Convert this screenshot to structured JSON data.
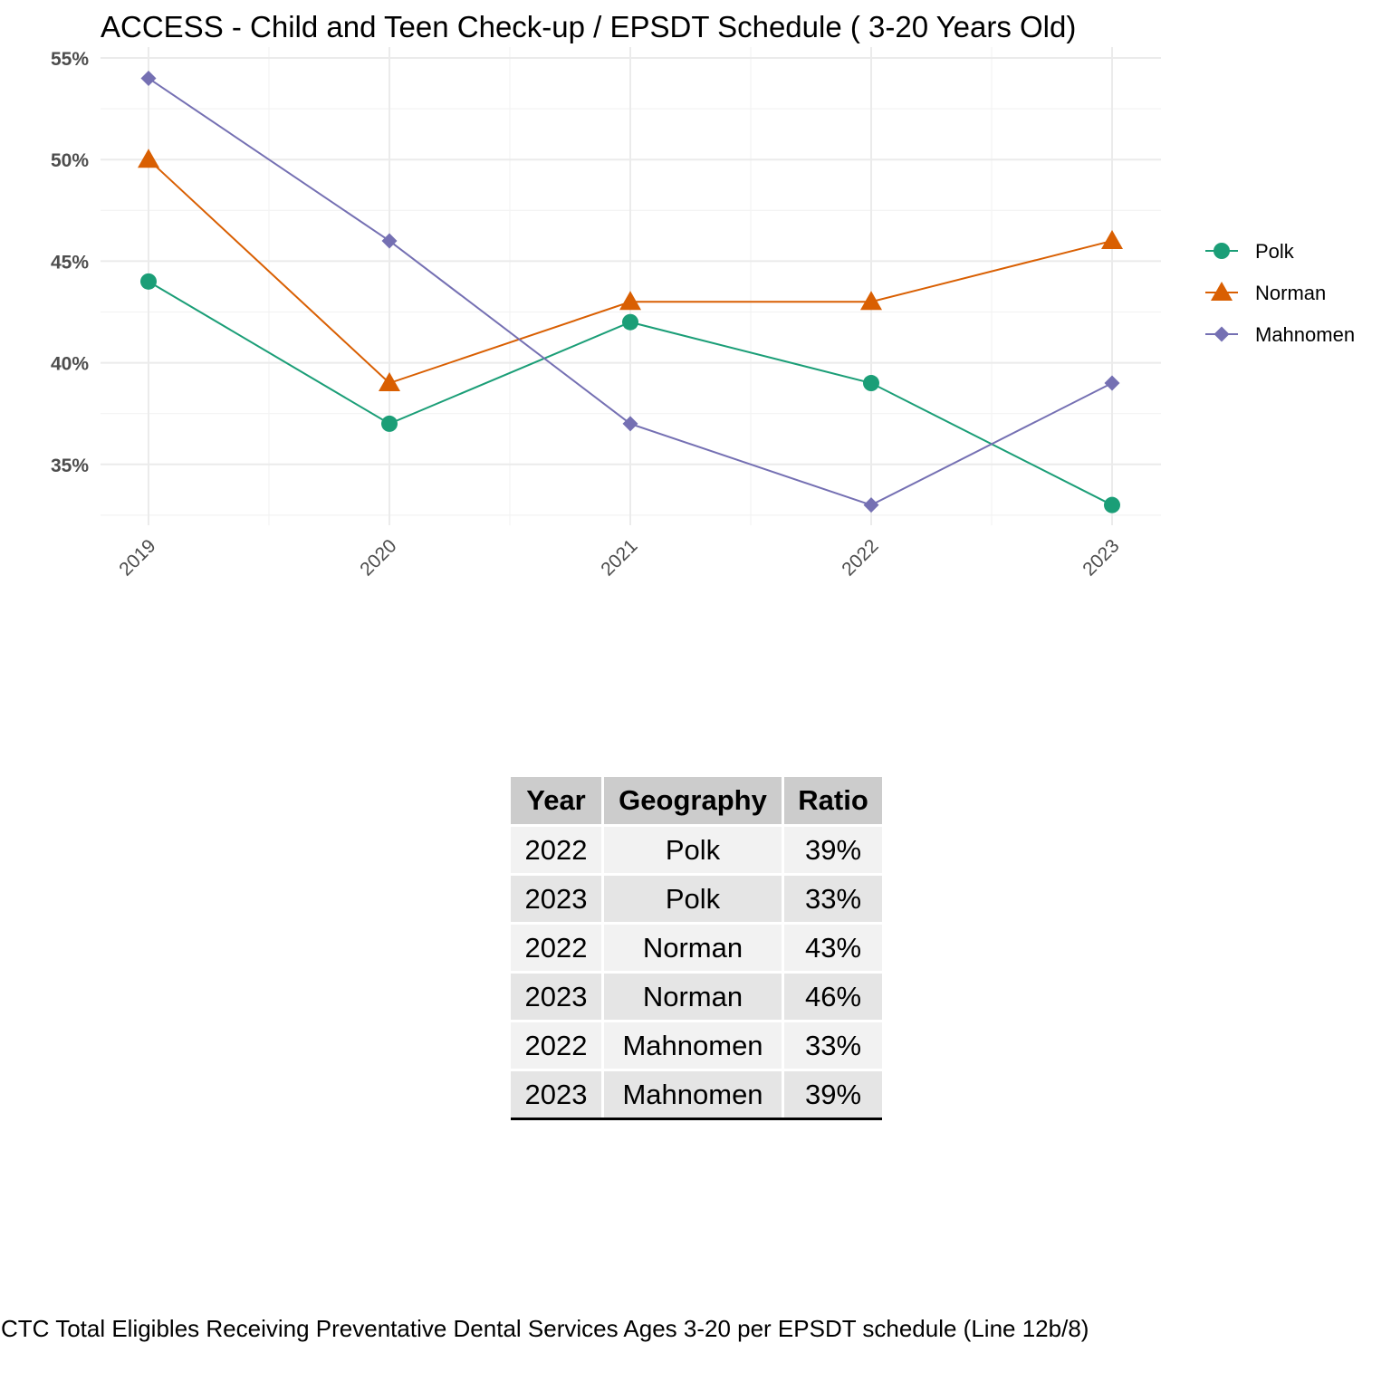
{
  "chart_data": {
    "type": "line",
    "title": "ACCESS - Child and Teen Check-up / EPSDT Schedule ( 3-20  Years Old)",
    "xlabel": "",
    "ylabel": "",
    "x": [
      "2019",
      "2020",
      "2021",
      "2022",
      "2023"
    ],
    "ylim": [
      32.5,
      55
    ],
    "y_ticks": [
      35,
      40,
      45,
      50,
      55
    ],
    "y_tick_labels": [
      "35%",
      "40%",
      "45%",
      "50%",
      "55%"
    ],
    "grid": true,
    "legend_position": "right",
    "series": [
      {
        "name": "Polk",
        "values": [
          44,
          37,
          42,
          39,
          33
        ],
        "color": "#1b9e77",
        "marker": "circle"
      },
      {
        "name": "Norman",
        "values": [
          50,
          39,
          43,
          43,
          46
        ],
        "color": "#d95f02",
        "marker": "triangle"
      },
      {
        "name": "Mahnomen",
        "values": [
          54,
          46,
          37,
          33,
          39
        ],
        "color": "#7570b3",
        "marker": "diamond"
      }
    ]
  },
  "table": {
    "headers": {
      "year": "Year",
      "geography": "Geography",
      "ratio": "Ratio"
    },
    "rows": [
      {
        "year": "2022",
        "geography": "Polk",
        "ratio": "39%"
      },
      {
        "year": "2023",
        "geography": "Polk",
        "ratio": "33%"
      },
      {
        "year": "2022",
        "geography": "Norman",
        "ratio": "43%"
      },
      {
        "year": "2023",
        "geography": "Norman",
        "ratio": "46%"
      },
      {
        "year": "2022",
        "geography": "Mahnomen",
        "ratio": "33%"
      },
      {
        "year": "2023",
        "geography": "Mahnomen",
        "ratio": "39%"
      }
    ]
  },
  "caption": "CTC Total Eligibles Receiving Preventative Dental Services Ages 3-20 per EPSDT schedule (Line 12b/8)"
}
